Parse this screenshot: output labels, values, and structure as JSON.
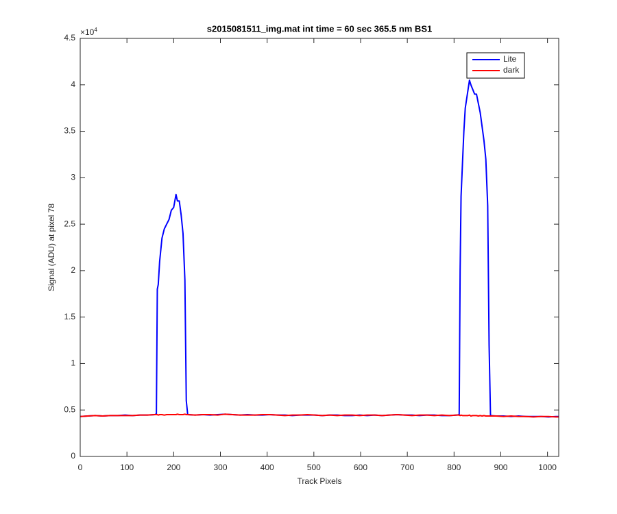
{
  "chart_data": {
    "type": "line",
    "title": "s2015081511_img.mat int time = 60 sec  365.5 nm BS1",
    "x_label": "Track Pixels",
    "y_label": "Signal (ADU) at pixel 78",
    "y_multiplier": "×10",
    "y_multiplier_exp": "4",
    "legend": "upper right",
    "xlim": [
      0,
      1024
    ],
    "xticks": [
      0,
      100,
      200,
      300,
      400,
      500,
      600,
      700,
      800,
      900,
      1000
    ],
    "ylim": [
      0,
      45000
    ],
    "yticks": [
      0,
      {
        "value": 5000,
        "label": "0.5"
      },
      {
        "value": 10000,
        "label": "1"
      },
      {
        "value": 15000,
        "label": "1.5"
      },
      {
        "value": 20000,
        "label": "2"
      },
      {
        "value": 25000,
        "label": "2.5"
      },
      {
        "value": 30000,
        "label": "3"
      },
      {
        "value": 35000,
        "label": "3.5"
      },
      {
        "value": 40000,
        "label": "4"
      },
      {
        "value": 45000,
        "label": "4.5"
      }
    ],
    "x": [
      0,
      16,
      32,
      48,
      64,
      80,
      96,
      112,
      128,
      144,
      160,
      163,
      165,
      167,
      170,
      175,
      180,
      185,
      190,
      195,
      200,
      205,
      208,
      212,
      216,
      220,
      224,
      227,
      230,
      246,
      262,
      278,
      294,
      310,
      326,
      342,
      358,
      374,
      390,
      406,
      422,
      438,
      454,
      470,
      486,
      502,
      518,
      534,
      550,
      566,
      582,
      598,
      614,
      630,
      646,
      662,
      678,
      694,
      710,
      726,
      742,
      758,
      774,
      790,
      806,
      811,
      813,
      815,
      818,
      821,
      824,
      827,
      830,
      833,
      836,
      840,
      844,
      848,
      852,
      856,
      860,
      864,
      868,
      872,
      875,
      878,
      890,
      906,
      922,
      938,
      954,
      970,
      986,
      1002,
      1018,
      1024
    ],
    "series": [
      {
        "name": "Lite",
        "color": "#0000ff",
        "values": [
          4300,
          4350,
          4400,
          4350,
          4400,
          4400,
          4450,
          4400,
          4450,
          4450,
          4500,
          4600,
          18000,
          18500,
          21000,
          23500,
          24500,
          25000,
          25500,
          26500,
          26800,
          28200,
          27500,
          27500,
          26000,
          24000,
          19000,
          6000,
          4500,
          4450,
          4500,
          4450,
          4500,
          4550,
          4500,
          4450,
          4500,
          4450,
          4450,
          4500,
          4450,
          4450,
          4400,
          4450,
          4450,
          4450,
          4400,
          4450,
          4450,
          4400,
          4400,
          4450,
          4400,
          4450,
          4400,
          4450,
          4500,
          4450,
          4450,
          4400,
          4450,
          4450,
          4400,
          4400,
          4450,
          4500,
          20000,
          28000,
          31500,
          35000,
          37500,
          38500,
          39500,
          40500,
          40000,
          39500,
          39000,
          39000,
          38000,
          37000,
          35500,
          34000,
          32000,
          27000,
          12000,
          4400,
          4350,
          4350,
          4300,
          4350,
          4300,
          4300,
          4300,
          4250,
          4300,
          4300
        ]
      },
      {
        "name": "dark",
        "color": "#ff0000",
        "values": [
          4300,
          4350,
          4400,
          4350,
          4400,
          4400,
          4400,
          4400,
          4450,
          4450,
          4500,
          4500,
          4500,
          4450,
          4500,
          4500,
          4450,
          4500,
          4500,
          4500,
          4500,
          4500,
          4550,
          4500,
          4500,
          4500,
          4550,
          4500,
          4500,
          4450,
          4500,
          4500,
          4450,
          4550,
          4500,
          4450,
          4450,
          4450,
          4500,
          4500,
          4450,
          4400,
          4450,
          4450,
          4500,
          4450,
          4400,
          4450,
          4400,
          4450,
          4450,
          4400,
          4450,
          4450,
          4400,
          4450,
          4500,
          4450,
          4400,
          4450,
          4450,
          4400,
          4450,
          4400,
          4450,
          4450,
          4400,
          4450,
          4400,
          4400,
          4400,
          4400,
          4400,
          4450,
          4350,
          4400,
          4400,
          4400,
          4350,
          4400,
          4350,
          4400,
          4350,
          4350,
          4350,
          4350,
          4350,
          4300,
          4350,
          4300,
          4300,
          4250,
          4300,
          4300,
          4250,
          4250
        ]
      }
    ]
  }
}
